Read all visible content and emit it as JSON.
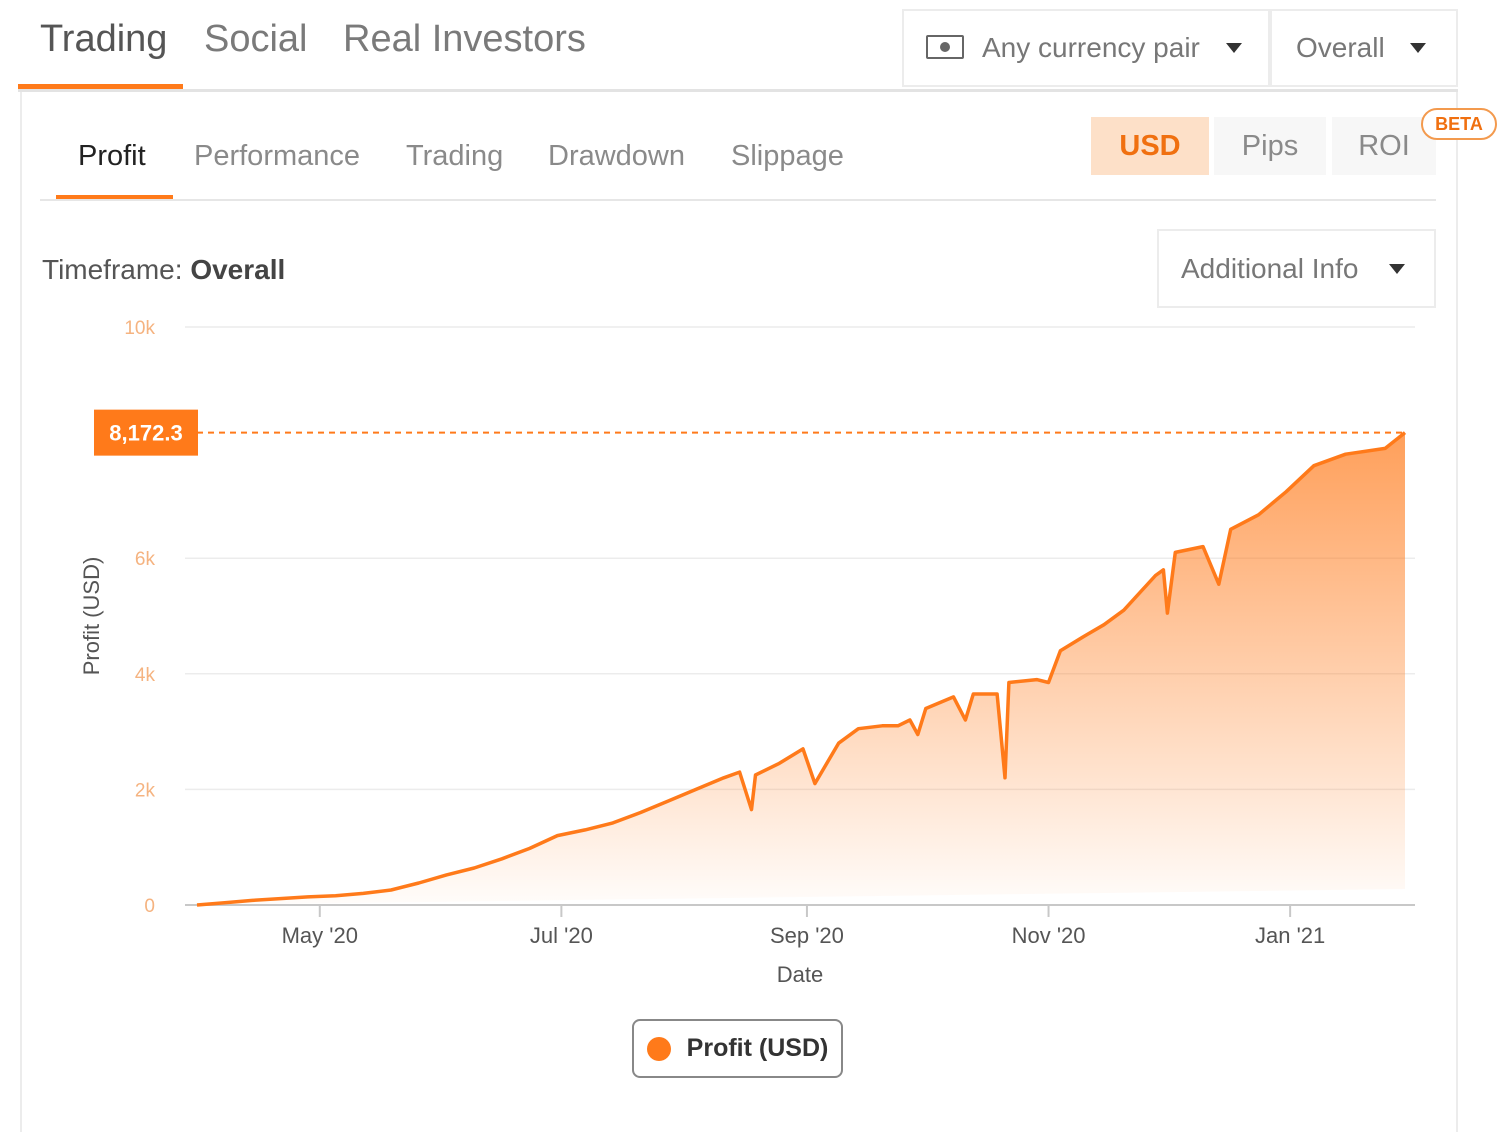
{
  "top_tabs": [
    "Trading",
    "Social",
    "Real Investors"
  ],
  "currency_select": {
    "value": "Any currency pair",
    "icon": "money-icon"
  },
  "period_select": {
    "value": "Overall"
  },
  "sub_tabs": [
    "Profit",
    "Performance",
    "Trading",
    "Drawdown",
    "Slippage"
  ],
  "units": {
    "usd": "USD",
    "pips": "Pips",
    "roi": "ROI",
    "beta": "BETA"
  },
  "timeframe": {
    "label": "Timeframe:",
    "value": "Overall"
  },
  "additional_info": "Additional Info",
  "legend": {
    "label": "Profit (USD)"
  },
  "colors": {
    "accent": "#ff7a1a",
    "accent_light": "#fde0c8",
    "grid": "#ececec"
  },
  "chart_data": {
    "type": "area",
    "xlabel": "Date",
    "ylabel": "Profit (USD)",
    "ylim": [
      0,
      10000
    ],
    "y_ticks": [
      {
        "value": 0,
        "label": "0"
      },
      {
        "value": 2000,
        "label": "2k"
      },
      {
        "value": 4000,
        "label": "4k"
      },
      {
        "value": 6000,
        "label": "6k"
      },
      {
        "value": 10000,
        "label": "10k"
      }
    ],
    "x_range": [
      "2020-03-31",
      "2021-01-30"
    ],
    "x_ticks": [
      {
        "date": "2020-05-01",
        "label": "May '20"
      },
      {
        "date": "2020-07-01",
        "label": "Jul '20"
      },
      {
        "date": "2020-09-01",
        "label": "Sep '20"
      },
      {
        "date": "2020-11-01",
        "label": "Nov '20"
      },
      {
        "date": "2021-01-01",
        "label": "Jan '21"
      }
    ],
    "last_value": {
      "value": 8172.3,
      "label": "8,172.3"
    },
    "series": [
      {
        "name": "Profit (USD)",
        "points": [
          [
            "2020-03-31",
            0
          ],
          [
            "2020-04-07",
            40
          ],
          [
            "2020-04-14",
            80
          ],
          [
            "2020-04-21",
            110
          ],
          [
            "2020-04-28",
            140
          ],
          [
            "2020-05-05",
            160
          ],
          [
            "2020-05-12",
            200
          ],
          [
            "2020-05-19",
            260
          ],
          [
            "2020-05-26",
            380
          ],
          [
            "2020-06-02",
            520
          ],
          [
            "2020-06-09",
            640
          ],
          [
            "2020-06-16",
            800
          ],
          [
            "2020-06-23",
            980
          ],
          [
            "2020-06-30",
            1200
          ],
          [
            "2020-07-07",
            1300
          ],
          [
            "2020-07-14",
            1420
          ],
          [
            "2020-07-21",
            1600
          ],
          [
            "2020-07-28",
            1800
          ],
          [
            "2020-08-04",
            2000
          ],
          [
            "2020-08-11",
            2200
          ],
          [
            "2020-08-15",
            2300
          ],
          [
            "2020-08-18",
            1650
          ],
          [
            "2020-08-19",
            2250
          ],
          [
            "2020-08-25",
            2450
          ],
          [
            "2020-08-31",
            2700
          ],
          [
            "2020-09-03",
            2100
          ],
          [
            "2020-09-09",
            2800
          ],
          [
            "2020-09-14",
            3050
          ],
          [
            "2020-09-20",
            3100
          ],
          [
            "2020-09-24",
            3100
          ],
          [
            "2020-09-27",
            3200
          ],
          [
            "2020-09-29",
            2950
          ],
          [
            "2020-10-01",
            3400
          ],
          [
            "2020-10-08",
            3600
          ],
          [
            "2020-10-11",
            3200
          ],
          [
            "2020-10-13",
            3650
          ],
          [
            "2020-10-19",
            3650
          ],
          [
            "2020-10-21",
            2200
          ],
          [
            "2020-10-22",
            3850
          ],
          [
            "2020-10-29",
            3900
          ],
          [
            "2020-11-01",
            3850
          ],
          [
            "2020-11-04",
            4400
          ],
          [
            "2020-11-10",
            4650
          ],
          [
            "2020-11-15",
            4850
          ],
          [
            "2020-11-20",
            5100
          ],
          [
            "2020-11-28",
            5700
          ],
          [
            "2020-11-30",
            5800
          ],
          [
            "2020-12-01",
            5050
          ],
          [
            "2020-12-03",
            6100
          ],
          [
            "2020-12-10",
            6200
          ],
          [
            "2020-12-14",
            5550
          ],
          [
            "2020-12-17",
            6500
          ],
          [
            "2020-12-24",
            6750
          ],
          [
            "2020-12-31",
            7150
          ],
          [
            "2021-01-07",
            7600
          ],
          [
            "2021-01-15",
            7800
          ],
          [
            "2021-01-25",
            7900
          ],
          [
            "2021-01-30",
            8172.3
          ]
        ]
      }
    ]
  }
}
